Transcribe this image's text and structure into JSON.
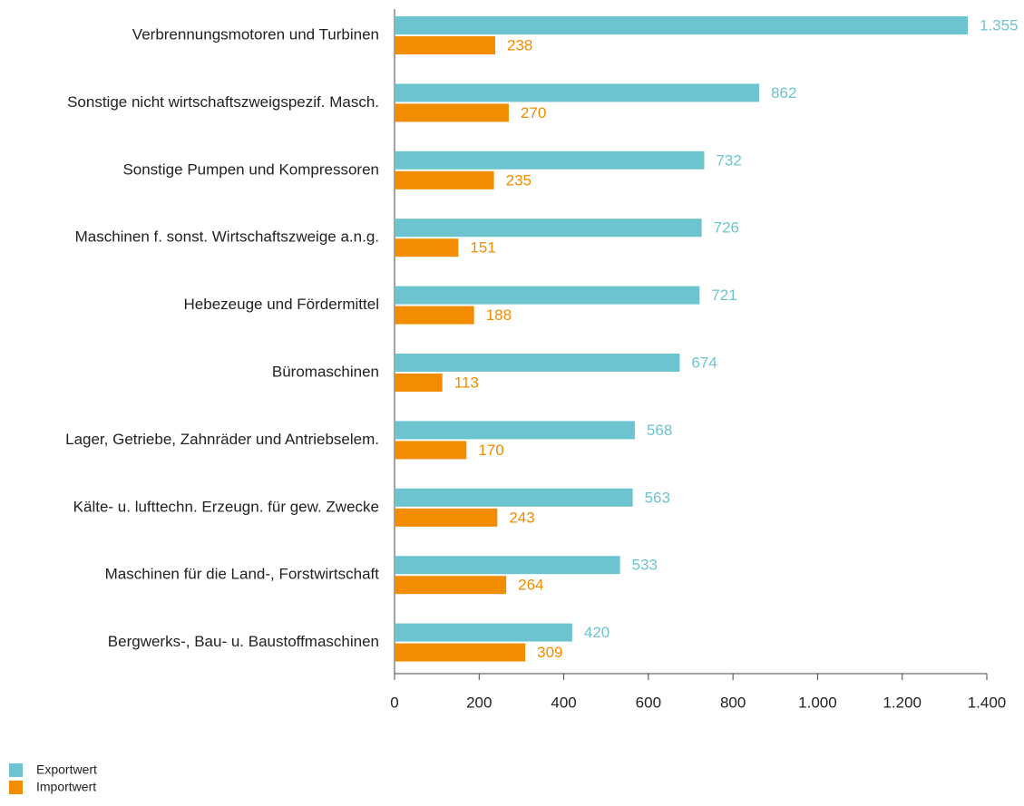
{
  "chart_data": {
    "type": "hbar",
    "categories": [
      "Verbrennungsmotoren und Turbinen",
      "Sonstige nicht wirtschaftszweigspezif. Masch.",
      "Sonstige Pumpen und Kompressoren",
      "Maschinen f. sonst. Wirtschaftszweige a.n.g.",
      "Hebezeuge und Fördermittel",
      "Büromaschinen",
      "Lager, Getriebe, Zahnräder und Antriebselem.",
      "Kälte- u. lufttechn. Erzeugn. für gew. Zwecke",
      "Maschinen für die Land-, Forstwirtschaft",
      "Bergwerks-, Bau- u. Baustoffmaschinen"
    ],
    "series": [
      {
        "name": "Exportwert",
        "color": "#6cc4d0",
        "values": [
          1355,
          862,
          732,
          726,
          721,
          674,
          568,
          563,
          533,
          420
        ],
        "value_labels": [
          "1.355",
          "862",
          "732",
          "726",
          "721",
          "674",
          "568",
          "563",
          "533",
          "420"
        ]
      },
      {
        "name": "Importwert",
        "color": "#f28c00",
        "values": [
          238,
          270,
          235,
          151,
          188,
          113,
          170,
          243,
          264,
          309
        ]
      }
    ],
    "xlim": [
      0,
      1400
    ],
    "xticks": [
      0,
      200,
      400,
      600,
      800,
      {
        "value": 1000,
        "label": "1.000"
      },
      {
        "value": 1200,
        "label": "1.200"
      },
      {
        "value": 1400,
        "label": "1.400"
      }
    ],
    "grid": false,
    "legend": "bottom-left"
  }
}
